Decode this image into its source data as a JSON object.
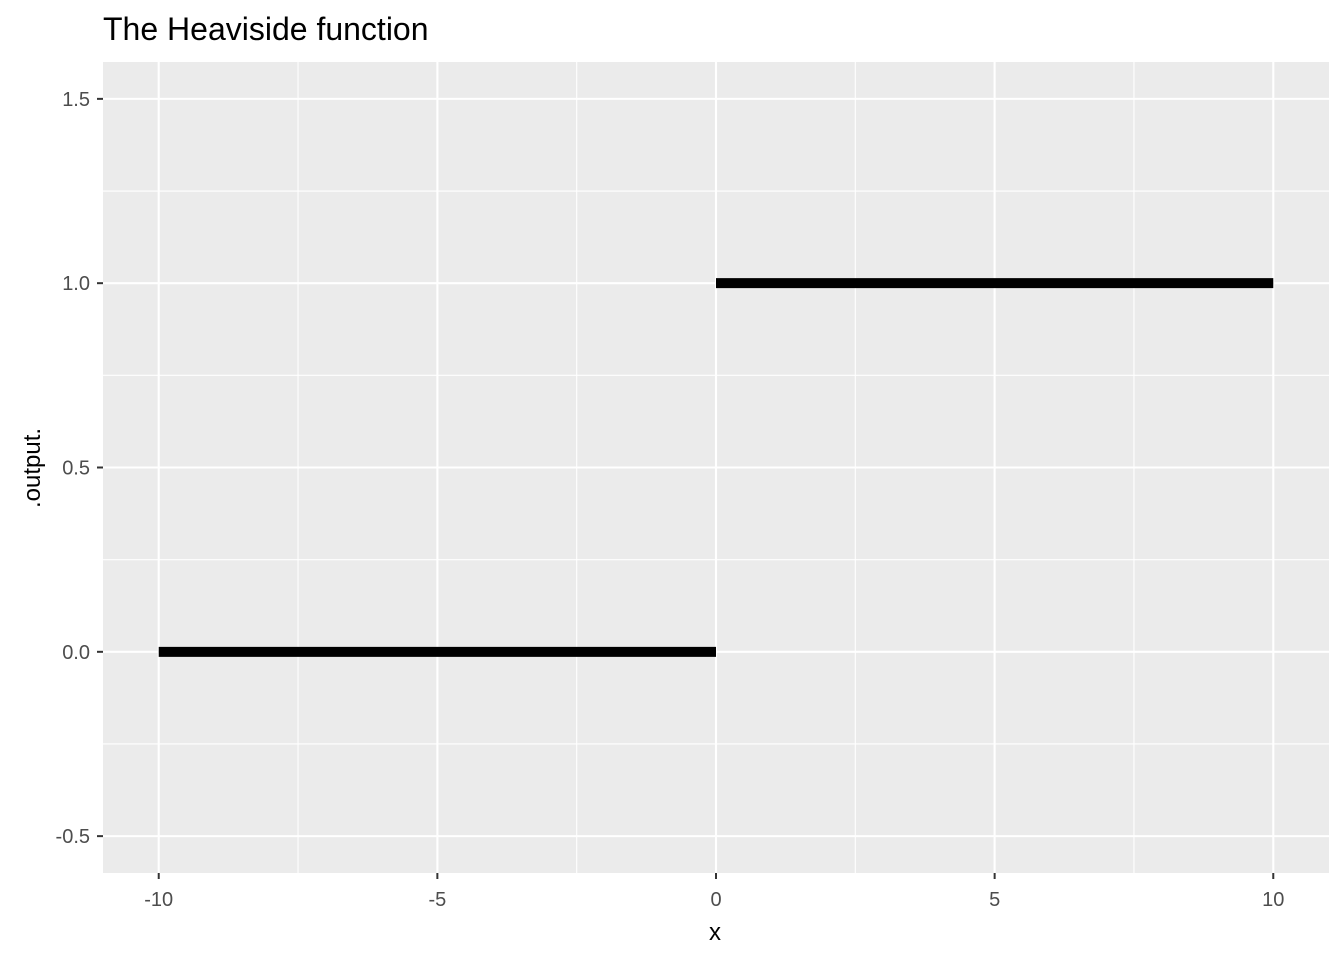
{
  "chart_data": {
    "type": "line",
    "title": "The Heaviside function",
    "xlabel": "x",
    "ylabel": ".output.",
    "xlim": [
      -11,
      11
    ],
    "ylim": [
      -0.6,
      1.6
    ],
    "x_ticks": [
      -10,
      -5,
      0,
      5,
      10
    ],
    "x_tick_labels": [
      "-10",
      "-5",
      "0",
      "5",
      "10"
    ],
    "x_minor_ticks": [
      -7.5,
      -2.5,
      2.5,
      7.5
    ],
    "y_ticks": [
      -0.5,
      0.0,
      0.5,
      1.0,
      1.5
    ],
    "y_tick_labels": [
      "-0.5",
      "0.0",
      "0.5",
      "1.0",
      "1.5"
    ],
    "y_minor_ticks": [
      -0.25,
      0.25,
      0.75,
      1.25
    ],
    "grid": true,
    "legend": "none",
    "panel_background": "#EBEBEB",
    "grid_color": "#FFFFFF",
    "line_color": "#000000",
    "series": [
      {
        "segments": [
          {
            "x": [
              -10,
              0
            ],
            "y": [
              0,
              0
            ]
          },
          {
            "x": [
              0,
              10
            ],
            "y": [
              1,
              1
            ]
          }
        ]
      }
    ]
  }
}
